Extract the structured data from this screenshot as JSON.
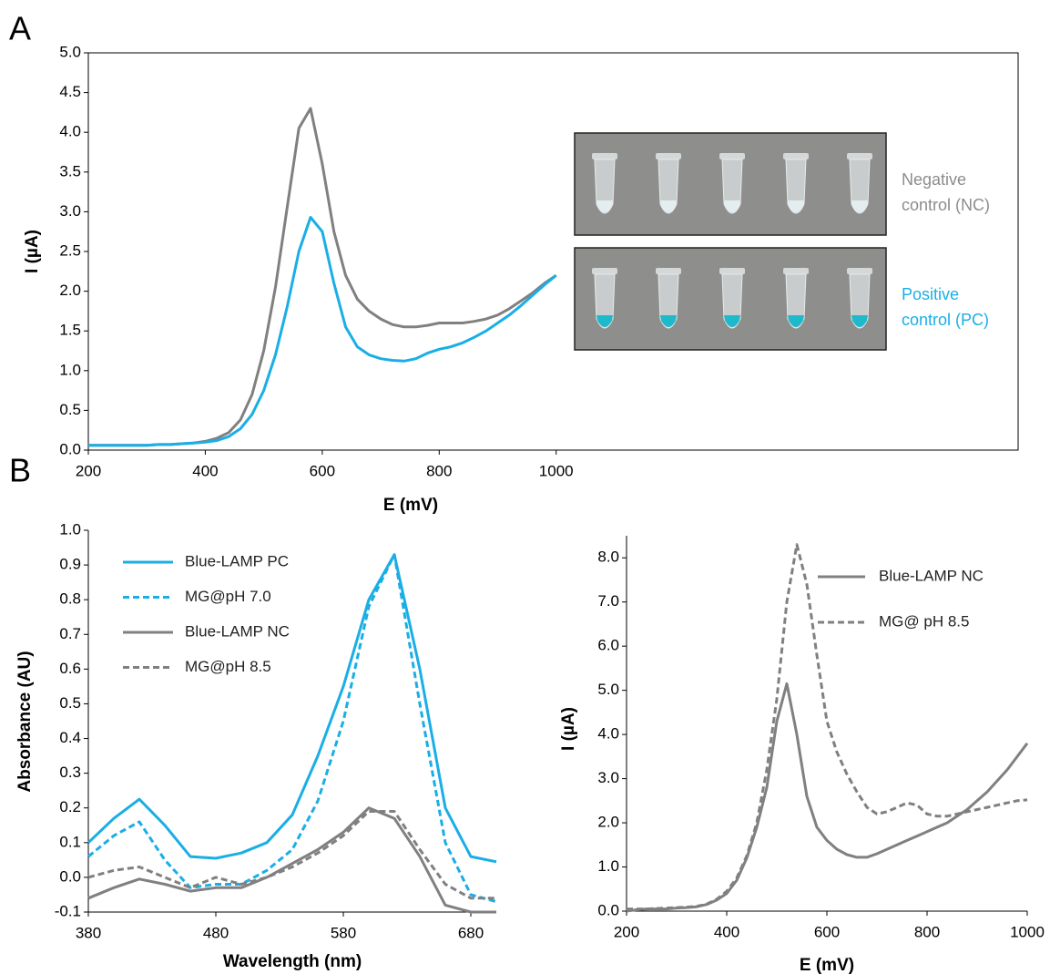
{
  "chart_data": [
    {
      "type": "line",
      "panel_label": "A",
      "xlabel": "E (mV)",
      "ylabel": "I (µA)",
      "xlim": [
        200,
        1790
      ],
      "ylim": [
        0,
        5
      ],
      "xticks": [
        200,
        400,
        600,
        800,
        1000
      ],
      "yticks": [
        {
          "value": 0,
          "label": "0.0"
        },
        0.5,
        {
          "value": 1,
          "label": "1.0"
        },
        1.5,
        {
          "value": 2,
          "label": "2.0"
        },
        2.5,
        {
          "value": 3,
          "label": "3.0"
        },
        3.5,
        {
          "value": 4,
          "label": "4.0"
        },
        4.5,
        {
          "value": 5,
          "label": "5.0"
        }
      ],
      "x": [
        200,
        220,
        240,
        260,
        280,
        300,
        320,
        340,
        360,
        380,
        400,
        420,
        440,
        460,
        480,
        500,
        520,
        540,
        560,
        580,
        600,
        620,
        640,
        660,
        680,
        700,
        720,
        740,
        760,
        780,
        800,
        820,
        840,
        860,
        880,
        900,
        920,
        940,
        960,
        980,
        1000
      ],
      "series": [
        {
          "color": "#808080",
          "values": [
            0.06,
            0.06,
            0.06,
            0.06,
            0.06,
            0.06,
            0.07,
            0.07,
            0.08,
            0.09,
            0.11,
            0.15,
            0.22,
            0.38,
            0.7,
            1.25,
            2.05,
            3.05,
            4.05,
            4.3,
            3.6,
            2.75,
            2.2,
            1.9,
            1.75,
            1.65,
            1.58,
            1.55,
            1.55,
            1.57,
            1.6,
            1.6,
            1.6,
            1.62,
            1.65,
            1.7,
            1.78,
            1.88,
            1.98,
            2.1,
            2.2
          ]
        },
        {
          "color": "#1aaee6",
          "values": [
            0.06,
            0.06,
            0.06,
            0.06,
            0.06,
            0.06,
            0.07,
            0.07,
            0.08,
            0.09,
            0.1,
            0.12,
            0.17,
            0.27,
            0.45,
            0.75,
            1.2,
            1.8,
            2.5,
            2.93,
            2.75,
            2.1,
            1.55,
            1.3,
            1.2,
            1.15,
            1.13,
            1.12,
            1.15,
            1.22,
            1.27,
            1.3,
            1.35,
            1.42,
            1.5,
            1.6,
            1.7,
            1.82,
            1.95,
            2.08,
            2.2
          ]
        }
      ],
      "annotations": [
        {
          "lines": [
            "Negative",
            "control (NC)"
          ],
          "color": "#8c8c8c"
        },
        {
          "lines": [
            "Positive",
            "control (PC)"
          ],
          "color": "#1aaee6"
        }
      ]
    },
    {
      "type": "line",
      "panel_label": "B",
      "xlabel": "Wavelength (nm)",
      "ylabel": "Absorbance (AU)",
      "xlim": [
        380,
        700
      ],
      "ylim": [
        -0.1,
        1
      ],
      "xticks": [
        380,
        480,
        580,
        680
      ],
      "yticks": [
        -0.1,
        {
          "value": 0,
          "label": "0.0"
        },
        0.1,
        0.2,
        0.3,
        0.4,
        0.5,
        0.6,
        0.7,
        0.8,
        0.9,
        {
          "value": 1,
          "label": "1.0"
        }
      ],
      "x": [
        380,
        400,
        420,
        440,
        460,
        480,
        500,
        520,
        540,
        560,
        580,
        600,
        620,
        640,
        660,
        680,
        700
      ],
      "series": [
        {
          "name": "Blue-LAMP PC",
          "color": "#1aaee6",
          "dashed": false,
          "values": [
            0.1,
            0.17,
            0.225,
            0.15,
            0.06,
            0.055,
            0.07,
            0.1,
            0.18,
            0.35,
            0.55,
            0.8,
            0.93,
            0.6,
            0.2,
            0.06,
            0.045
          ]
        },
        {
          "name": "MG@pH 7.0",
          "color": "#1aaee6",
          "dashed": true,
          "values": [
            0.06,
            0.12,
            0.16,
            0.05,
            -0.03,
            -0.02,
            -0.02,
            0.02,
            0.08,
            0.22,
            0.45,
            0.78,
            0.93,
            0.5,
            0.1,
            -0.05,
            -0.07
          ]
        },
        {
          "name": "Blue-LAMP NC",
          "color": "#808080",
          "dashed": false,
          "values": [
            -0.06,
            -0.03,
            -0.005,
            -0.02,
            -0.04,
            -0.03,
            -0.03,
            0,
            0.04,
            0.08,
            0.13,
            0.2,
            0.17,
            0.06,
            -0.08,
            -0.1,
            -0.1
          ]
        },
        {
          "name": "MG@pH 8.5",
          "color": "#808080",
          "dashed": true,
          "values": [
            0,
            0.02,
            0.03,
            0,
            -0.03,
            0,
            -0.02,
            0,
            0.03,
            0.07,
            0.12,
            0.19,
            0.19,
            0.08,
            -0.02,
            -0.06,
            -0.06
          ]
        }
      ]
    },
    {
      "type": "line",
      "xlabel": "E (mV)",
      "ylabel": "I (µA)",
      "xlim": [
        200,
        1000
      ],
      "ylim": [
        0,
        8.5
      ],
      "xticks": [
        200,
        400,
        600,
        800,
        1000
      ],
      "yticks": [
        {
          "value": 0,
          "label": "0.0"
        },
        {
          "value": 1,
          "label": "1.0"
        },
        {
          "value": 2,
          "label": "2.0"
        },
        {
          "value": 3,
          "label": "3.0"
        },
        {
          "value": 4,
          "label": "4.0"
        },
        {
          "value": 5,
          "label": "5.0"
        },
        {
          "value": 6,
          "label": "6.0"
        },
        {
          "value": 7,
          "label": "7.0"
        },
        {
          "value": 8,
          "label": "8.0"
        }
      ],
      "x": [
        200,
        220,
        240,
        260,
        280,
        300,
        320,
        340,
        360,
        380,
        400,
        420,
        440,
        460,
        480,
        500,
        520,
        540,
        560,
        580,
        600,
        620,
        640,
        660,
        680,
        700,
        720,
        740,
        760,
        780,
        800,
        820,
        840,
        860,
        880,
        900,
        920,
        940,
        960,
        980,
        1000
      ],
      "series": [
        {
          "name": "Blue-LAMP NC",
          "color": "#808080",
          "dashed": false,
          "values": [
            0,
            0.03,
            0.05,
            0.05,
            0.05,
            0.07,
            0.08,
            0.1,
            0.15,
            0.25,
            0.4,
            0.7,
            1.2,
            1.9,
            2.8,
            4.3,
            5.15,
            4.0,
            2.6,
            1.9,
            1.6,
            1.4,
            1.28,
            1.22,
            1.22,
            1.3,
            1.4,
            1.5,
            1.6,
            1.7,
            1.8,
            1.9,
            2.0,
            2.15,
            2.3,
            2.5,
            2.7,
            2.95,
            3.2,
            3.5,
            3.8
          ]
        },
        {
          "name": "MG@ pH 8.5",
          "color": "#808080",
          "dashed": true,
          "values": [
            0.05,
            0.05,
            0.05,
            0.06,
            0.07,
            0.08,
            0.09,
            0.11,
            0.16,
            0.27,
            0.45,
            0.75,
            1.25,
            2.0,
            3.2,
            4.8,
            7.0,
            8.3,
            7.4,
            5.8,
            4.3,
            3.6,
            3.1,
            2.7,
            2.35,
            2.2,
            2.25,
            2.35,
            2.45,
            2.4,
            2.2,
            2.15,
            2.15,
            2.2,
            2.25,
            2.3,
            2.35,
            2.4,
            2.45,
            2.5,
            2.52
          ]
        }
      ]
    }
  ]
}
